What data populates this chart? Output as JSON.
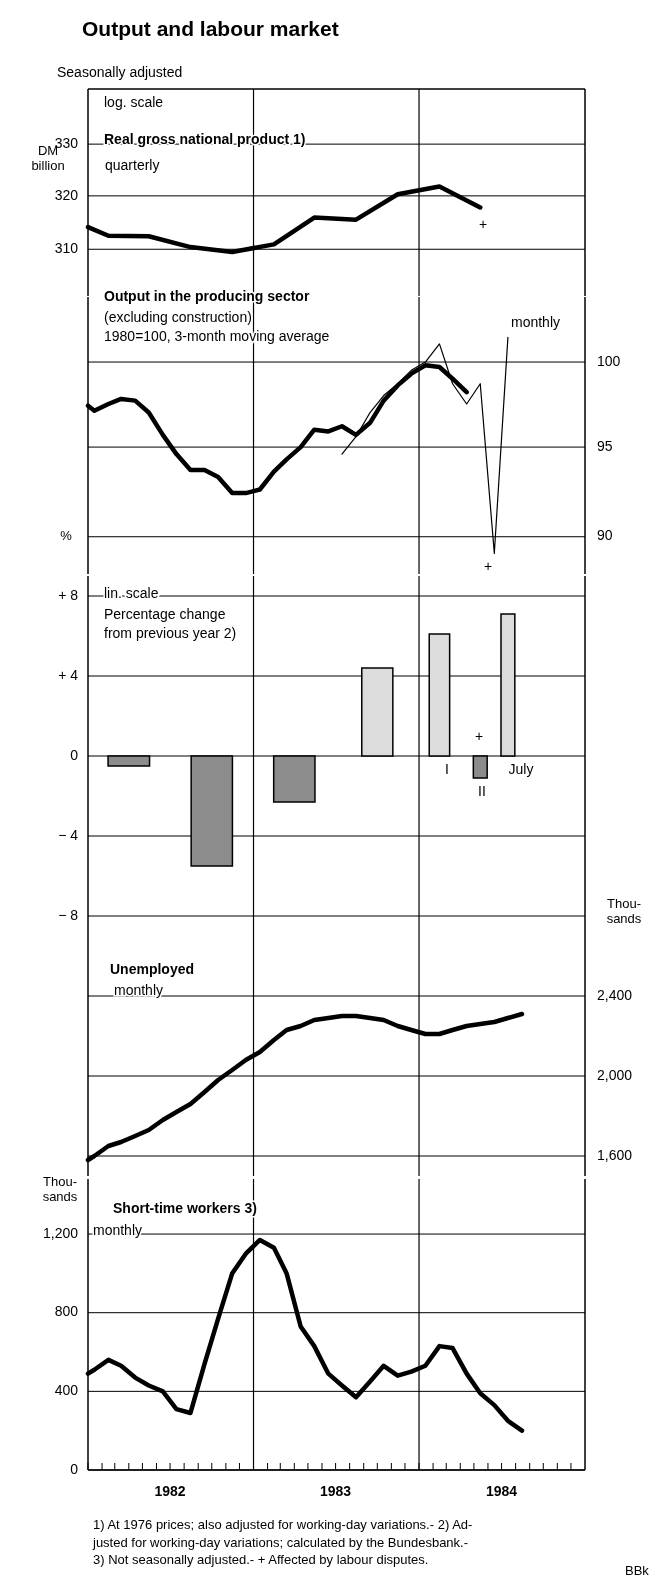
{
  "chart_data": [
    {
      "type": "line",
      "title": "Output and labour market",
      "subtitle": "Seasonally adjusted",
      "ylabel": "DM\nbillion",
      "log": true,
      "grid": "y",
      "tick_labels": "y",
      "xlim": [
        "1982-01-01",
        "1985-01-01"
      ],
      "ylim": [
        301.5,
        341
      ],
      "yticks": [
        310,
        320,
        330
      ],
      "ref_lines": [
        {
          "axis": "x",
          "value": "1983-01-01"
        },
        {
          "axis": "x",
          "value": "1984-01-01"
        }
      ],
      "annotations": [
        "log. scale",
        "quarterly",
        "+"
      ],
      "series": [
        {
          "name": "Real gross national product 1)",
          "color": "#000000",
          "x": [
            "1982-01-01",
            "1982-02-15",
            "1982-05-15",
            "1982-08-15",
            "1982-11-15",
            "1983-02-15",
            "1983-05-15",
            "1983-08-15",
            "1983-11-15",
            "1984-02-15",
            "1984-05-15"
          ],
          "values": [
            314.1,
            312.5,
            312.4,
            310.4,
            309.5,
            310.9,
            315.9,
            315.5,
            320.3,
            321.8,
            317.8
          ]
        }
      ]
    },
    {
      "type": "line",
      "log": "y2",
      "grid": "y",
      "tick_labels": "y",
      "xlim": [
        "1982-01-01",
        "1985-01-01"
      ],
      "y2lim": [
        88,
        104
      ],
      "y2ticks": [
        90,
        95,
        100
      ],
      "ref_lines": [
        {
          "axis": "x",
          "value": "1983-01-01"
        },
        {
          "axis": "x",
          "value": "1984-01-01"
        }
      ],
      "annotations": [
        "Output in the producing sector",
        "(excluding construction)\n1980=100, 3-month moving average",
        "+"
      ],
      "series": [
        {
          "color": "#000000",
          "axis": "y2",
          "x": [
            "1982-01-01",
            "1982-01-15",
            "1982-02-15",
            "1982-03-15",
            "1982-04-15",
            "1982-05-15",
            "1982-06-15",
            "1982-07-15",
            "1982-08-15",
            "1982-09-15",
            "1982-10-15",
            "1982-11-15",
            "1982-12-15",
            "1983-01-15",
            "1983-02-15",
            "1983-03-15",
            "1983-04-15",
            "1983-05-15",
            "1983-06-15",
            "1983-07-15",
            "1983-08-15",
            "1983-09-15",
            "1983-10-15",
            "1983-11-15",
            "1983-12-15",
            "1984-01-15",
            "1984-02-15",
            "1984-03-15",
            "1984-04-15"
          ],
          "values": [
            97.4,
            97.1,
            97.5,
            97.8,
            97.7,
            97.0,
            95.7,
            94.6,
            93.7,
            93.7,
            93.3,
            92.4,
            92.4,
            92.6,
            93.6,
            94.3,
            95.0,
            96.0,
            95.9,
            96.2,
            95.7,
            96.4,
            97.7,
            98.6,
            99.3,
            99.8,
            99.7,
            99.0,
            98.2
          ]
        },
        {
          "name": "monthly",
          "color": "#000000",
          "axis": "y2",
          "x": [
            "1983-07-15",
            "1983-08-15",
            "1983-09-15",
            "1983-10-15",
            "1983-11-15",
            "1983-12-15",
            "1984-01-15",
            "1984-02-15",
            "1984-03-15",
            "1984-04-15",
            "1984-05-15",
            "1984-06-15",
            "1984-07-15"
          ],
          "values": [
            94.6,
            95.6,
            97.0,
            98.0,
            98.7,
            99.5,
            100.0,
            101.1,
            98.7,
            97.5,
            98.7,
            89.1,
            101.5
          ]
        }
      ]
    },
    {
      "type": "bar",
      "ylabel": "%",
      "grid": "y",
      "tick_labels": "y",
      "xlim": [
        "1982-01-01",
        "1985-01-01"
      ],
      "ylim": [
        -8,
        9
      ],
      "yticks": [
        {
          "value": -8,
          "label": "− 8"
        },
        {
          "value": -4,
          "label": "− 4"
        },
        0,
        {
          "value": 4,
          "label": "+ 4"
        },
        {
          "value": 8,
          "label": "+ 8"
        }
      ],
      "ref_lines": [
        {
          "axis": "x",
          "value": "1983-01-01"
        },
        {
          "axis": "x",
          "value": "1984-01-01"
        }
      ],
      "x": [
        "1982-04-01",
        "1982-10-01",
        "1983-04-01",
        "1983-10-01",
        "1984-02-15",
        "1984-05-15",
        "1984-07-15"
      ],
      "values": [
        -0.5,
        -5.5,
        -2.3,
        4.4,
        6.1,
        -1.1,
        7.1
      ],
      "colors": [
        "#8c8c8c",
        "#8c8c8c",
        "#8c8c8c",
        "#dcdcdc",
        "#dcdcdc",
        "#8c8c8c",
        "#dcdcdc"
      ],
      "annotations": [
        "lin. scale",
        "Percentage change\nfrom previous year 2)",
        "I",
        "II",
        "July",
        "+"
      ]
    },
    {
      "type": "line",
      "y2label": "Thou-\nsands",
      "grid": "y",
      "tick_labels": "y",
      "xlim": [
        "1982-01-01",
        "1985-01-01"
      ],
      "y2lim": [
        1500,
        2800
      ],
      "y2ticks": [
        {
          "value": 1600,
          "label": "1,600"
        },
        {
          "value": 2000,
          "label": "2,000"
        },
        {
          "value": 2400,
          "label": "2,400"
        }
      ],
      "ref_lines": [
        {
          "axis": "x",
          "value": "1983-01-01"
        },
        {
          "axis": "x",
          "value": "1984-01-01"
        }
      ],
      "annotations": [
        "monthly"
      ],
      "series": [
        {
          "name": "Unemployed",
          "color": "#000000",
          "axis": "y2",
          "x": [
            "1982-01-01",
            "1982-01-15",
            "1982-02-15",
            "1982-03-15",
            "1982-04-15",
            "1982-05-15",
            "1982-06-15",
            "1982-07-15",
            "1982-08-15",
            "1982-09-15",
            "1982-10-15",
            "1982-11-15",
            "1982-12-15",
            "1983-01-15",
            "1983-02-15",
            "1983-03-15",
            "1983-04-15",
            "1983-05-15",
            "1983-06-15",
            "1983-07-15",
            "1983-08-15",
            "1983-09-15",
            "1983-10-15",
            "1983-11-15",
            "1983-12-15",
            "1984-01-15",
            "1984-02-15",
            "1984-03-15",
            "1984-04-15",
            "1984-05-15",
            "1984-06-15",
            "1984-07-15",
            "1984-08-15"
          ],
          "values": [
            1580,
            1600,
            1650,
            1670,
            1700,
            1730,
            1780,
            1820,
            1860,
            1920,
            1980,
            2030,
            2080,
            2120,
            2180,
            2230,
            2250,
            2280,
            2290,
            2300,
            2300,
            2290,
            2280,
            2250,
            2230,
            2210,
            2210,
            2230,
            2250,
            2260,
            2270,
            2290,
            2310
          ]
        }
      ]
    },
    {
      "type": "line",
      "ylabel": "Thou-\nsands",
      "grid": "y",
      "xlim": [
        "1982-01-01",
        "1985-01-01"
      ],
      "ylim": [
        0,
        1480
      ],
      "yticks": [
        0,
        400,
        800,
        {
          "value": 1200,
          "label": "1,200"
        }
      ],
      "xticks": [
        {
          "value": "1982-01-01",
          "label": null
        },
        {
          "value": "1982-02-01",
          "label": null
        },
        {
          "value": "1982-03-01",
          "label": null
        },
        {
          "value": "1982-04-01",
          "label": null
        },
        {
          "value": "1982-05-01",
          "label": null
        },
        {
          "value": "1982-06-01",
          "label": null
        },
        {
          "value": "1982-07-01",
          "label": "1982"
        },
        {
          "value": "1982-08-01",
          "label": null
        },
        {
          "value": "1982-09-01",
          "label": null
        },
        {
          "value": "1982-10-01",
          "label": null
        },
        {
          "value": "1982-11-01",
          "label": null
        },
        {
          "value": "1982-12-01",
          "label": null
        },
        {
          "value": "1983-01-01",
          "label": null
        },
        {
          "value": "1983-02-01",
          "label": null
        },
        {
          "value": "1983-03-01",
          "label": null
        },
        {
          "value": "1983-04-01",
          "label": null
        },
        {
          "value": "1983-05-01",
          "label": null
        },
        {
          "value": "1983-06-01",
          "label": null
        },
        {
          "value": "1983-07-01",
          "label": "1983"
        },
        {
          "value": "1983-08-01",
          "label": null
        },
        {
          "value": "1983-09-01",
          "label": null
        },
        {
          "value": "1983-10-01",
          "label": null
        },
        {
          "value": "1983-11-01",
          "label": null
        },
        {
          "value": "1983-12-01",
          "label": null
        },
        {
          "value": "1984-01-01",
          "label": null
        },
        {
          "value": "1984-02-01",
          "label": null
        },
        {
          "value": "1984-03-01",
          "label": null
        },
        {
          "value": "1984-04-01",
          "label": null
        },
        {
          "value": "1984-05-01",
          "label": null
        },
        {
          "value": "1984-06-01",
          "label": null
        },
        {
          "value": "1984-07-01",
          "label": "1984"
        },
        {
          "value": "1984-08-01",
          "label": null
        },
        {
          "value": "1984-09-01",
          "label": null
        },
        {
          "value": "1984-10-01",
          "label": null
        },
        {
          "value": "1984-11-01",
          "label": null
        },
        {
          "value": "1984-12-01",
          "label": null
        }
      ],
      "ref_lines": [
        {
          "axis": "x",
          "value": "1983-01-01"
        },
        {
          "axis": "x",
          "value": "1984-01-01"
        }
      ],
      "annotations": [
        "monthly",
        "1) At 1976 prices; also adjusted for working-day variations.- 2) Ad-\njusted for working-day variations; calculated by the Bundesbank.-\n3) Not seasonally adjusted.- + Affected by labour disputes.",
        "BBk"
      ],
      "series": [
        {
          "name": "Short-time workers 3)",
          "color": "#000000",
          "x": [
            "1982-01-01",
            "1982-01-15",
            "1982-02-15",
            "1982-03-15",
            "1982-04-15",
            "1982-05-15",
            "1982-06-15",
            "1982-07-15",
            "1982-08-15",
            "1982-09-15",
            "1982-10-15",
            "1982-11-15",
            "1982-12-15",
            "1983-01-15",
            "1983-02-15",
            "1983-03-15",
            "1983-04-15",
            "1983-05-15",
            "1983-06-15",
            "1983-07-15",
            "1983-08-15",
            "1983-09-15",
            "1983-10-15",
            "1983-11-15",
            "1983-12-15",
            "1984-01-15",
            "1984-02-15",
            "1984-03-15",
            "1984-04-15",
            "1984-05-15",
            "1984-06-15",
            "1984-07-15",
            "1984-08-15"
          ],
          "values": [
            490,
            510,
            560,
            530,
            470,
            430,
            400,
            310,
            290,
            540,
            770,
            1000,
            1100,
            1170,
            1130,
            1000,
            730,
            630,
            490,
            430,
            370,
            450,
            530,
            480,
            500,
            530,
            630,
            620,
            490,
            390,
            330,
            250,
            200
          ]
        }
      ]
    }
  ]
}
